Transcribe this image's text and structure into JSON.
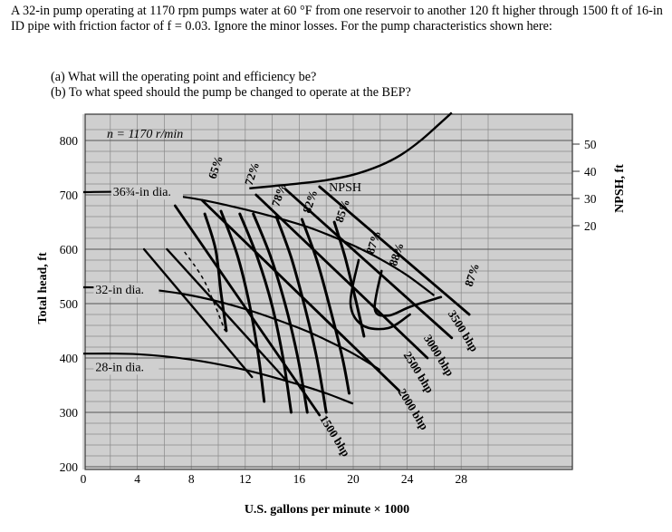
{
  "problem": {
    "text": "A 32-in pump operating at 1170 rpm pumps water at 60 °F from one reservoir to another 120 ft higher through 1500 ft of 16-in ID pipe with friction factor of f = 0.03. Ignore the minor losses. For the pump characteristics shown here:"
  },
  "questions": [
    "(a) What will the operating point and efficiency be?",
    "(b) To what speed should the pump be changed to operate at the BEP?"
  ],
  "chart_data": {
    "type": "line",
    "title": "n = 1170 r/min",
    "xlabel": "U.S. gallons per minute × 1000",
    "ylabel": "Total head, ft",
    "y2label": "NPSH, ft",
    "xlim": [
      0,
      30
    ],
    "ylim": [
      200,
      830
    ],
    "y2lim": [
      15,
      55
    ],
    "xticks": [
      0,
      4,
      8,
      12,
      16,
      20,
      24,
      28
    ],
    "yticks": [
      200,
      300,
      400,
      500,
      600,
      700,
      800
    ],
    "y2ticks": [
      20,
      30,
      40,
      50
    ],
    "grid": true,
    "series": [
      {
        "name": "36¾-in dia.",
        "kind": "head",
        "labelAt": [
          2.2,
          698
        ],
        "x": [
          0,
          4,
          8,
          12,
          16,
          18,
          20,
          22,
          24,
          26
        ],
        "y": [
          705,
          705,
          694,
          673,
          646,
          628,
          607,
          582,
          552,
          515
        ]
      },
      {
        "name": "32-in dia.",
        "kind": "head",
        "labelAt": [
          0.9,
          518
        ],
        "x": [
          0,
          4,
          8,
          12,
          16,
          18,
          20,
          22
        ],
        "y": [
          530,
          528,
          515,
          490,
          455,
          433,
          408,
          378
        ]
      },
      {
        "name": "28-in dia.",
        "kind": "head",
        "labelAt": [
          0.9,
          376
        ],
        "x": [
          0,
          4,
          8,
          12,
          16,
          18,
          20
        ],
        "y": [
          408,
          407,
          397,
          378,
          351,
          335,
          316
        ]
      },
      {
        "name": "NPSH",
        "kind": "npsh",
        "labelAt": [
          18.2,
          707
        ],
        "x": [
          12.3,
          14,
          16,
          18,
          20,
          22,
          23.5,
          25,
          26.5,
          27.3
        ],
        "y": [
          712,
          716,
          721,
          727,
          737,
          754,
          773,
          800,
          833,
          851
        ]
      }
    ],
    "efficiency_curves": [
      {
        "label": "65%",
        "labelAt": [
          9.8,
          728
        ]
      },
      {
        "label": "72%",
        "labelAt": [
          12.5,
          716
        ]
      },
      {
        "label": "78%",
        "labelAt": [
          14.5,
          677
        ]
      },
      {
        "label": "82%",
        "labelAt": [
          16.8,
          665
        ]
      },
      {
        "label": "85%",
        "labelAt": [
          19.2,
          648
        ]
      },
      {
        "label": "87%",
        "labelAt": [
          21.5,
          590
        ]
      },
      {
        "label": "88%",
        "labelAt": [
          23.2,
          568
        ]
      },
      {
        "label": "87%",
        "labelAt": [
          28.8,
          530
        ]
      }
    ],
    "power_curves": [
      {
        "label": "1500 bhp",
        "labelAt": [
          17.5,
          289
        ]
      },
      {
        "label": "2000 bhp",
        "labelAt": [
          23.3,
          338
        ]
      },
      {
        "label": "2500 bhp",
        "labelAt": [
          23.7,
          406
        ]
      },
      {
        "label": "3000 bhp",
        "labelAt": [
          25.2,
          437
        ]
      },
      {
        "label": "3500 bhp",
        "labelAt": [
          27,
          482
        ]
      }
    ]
  }
}
